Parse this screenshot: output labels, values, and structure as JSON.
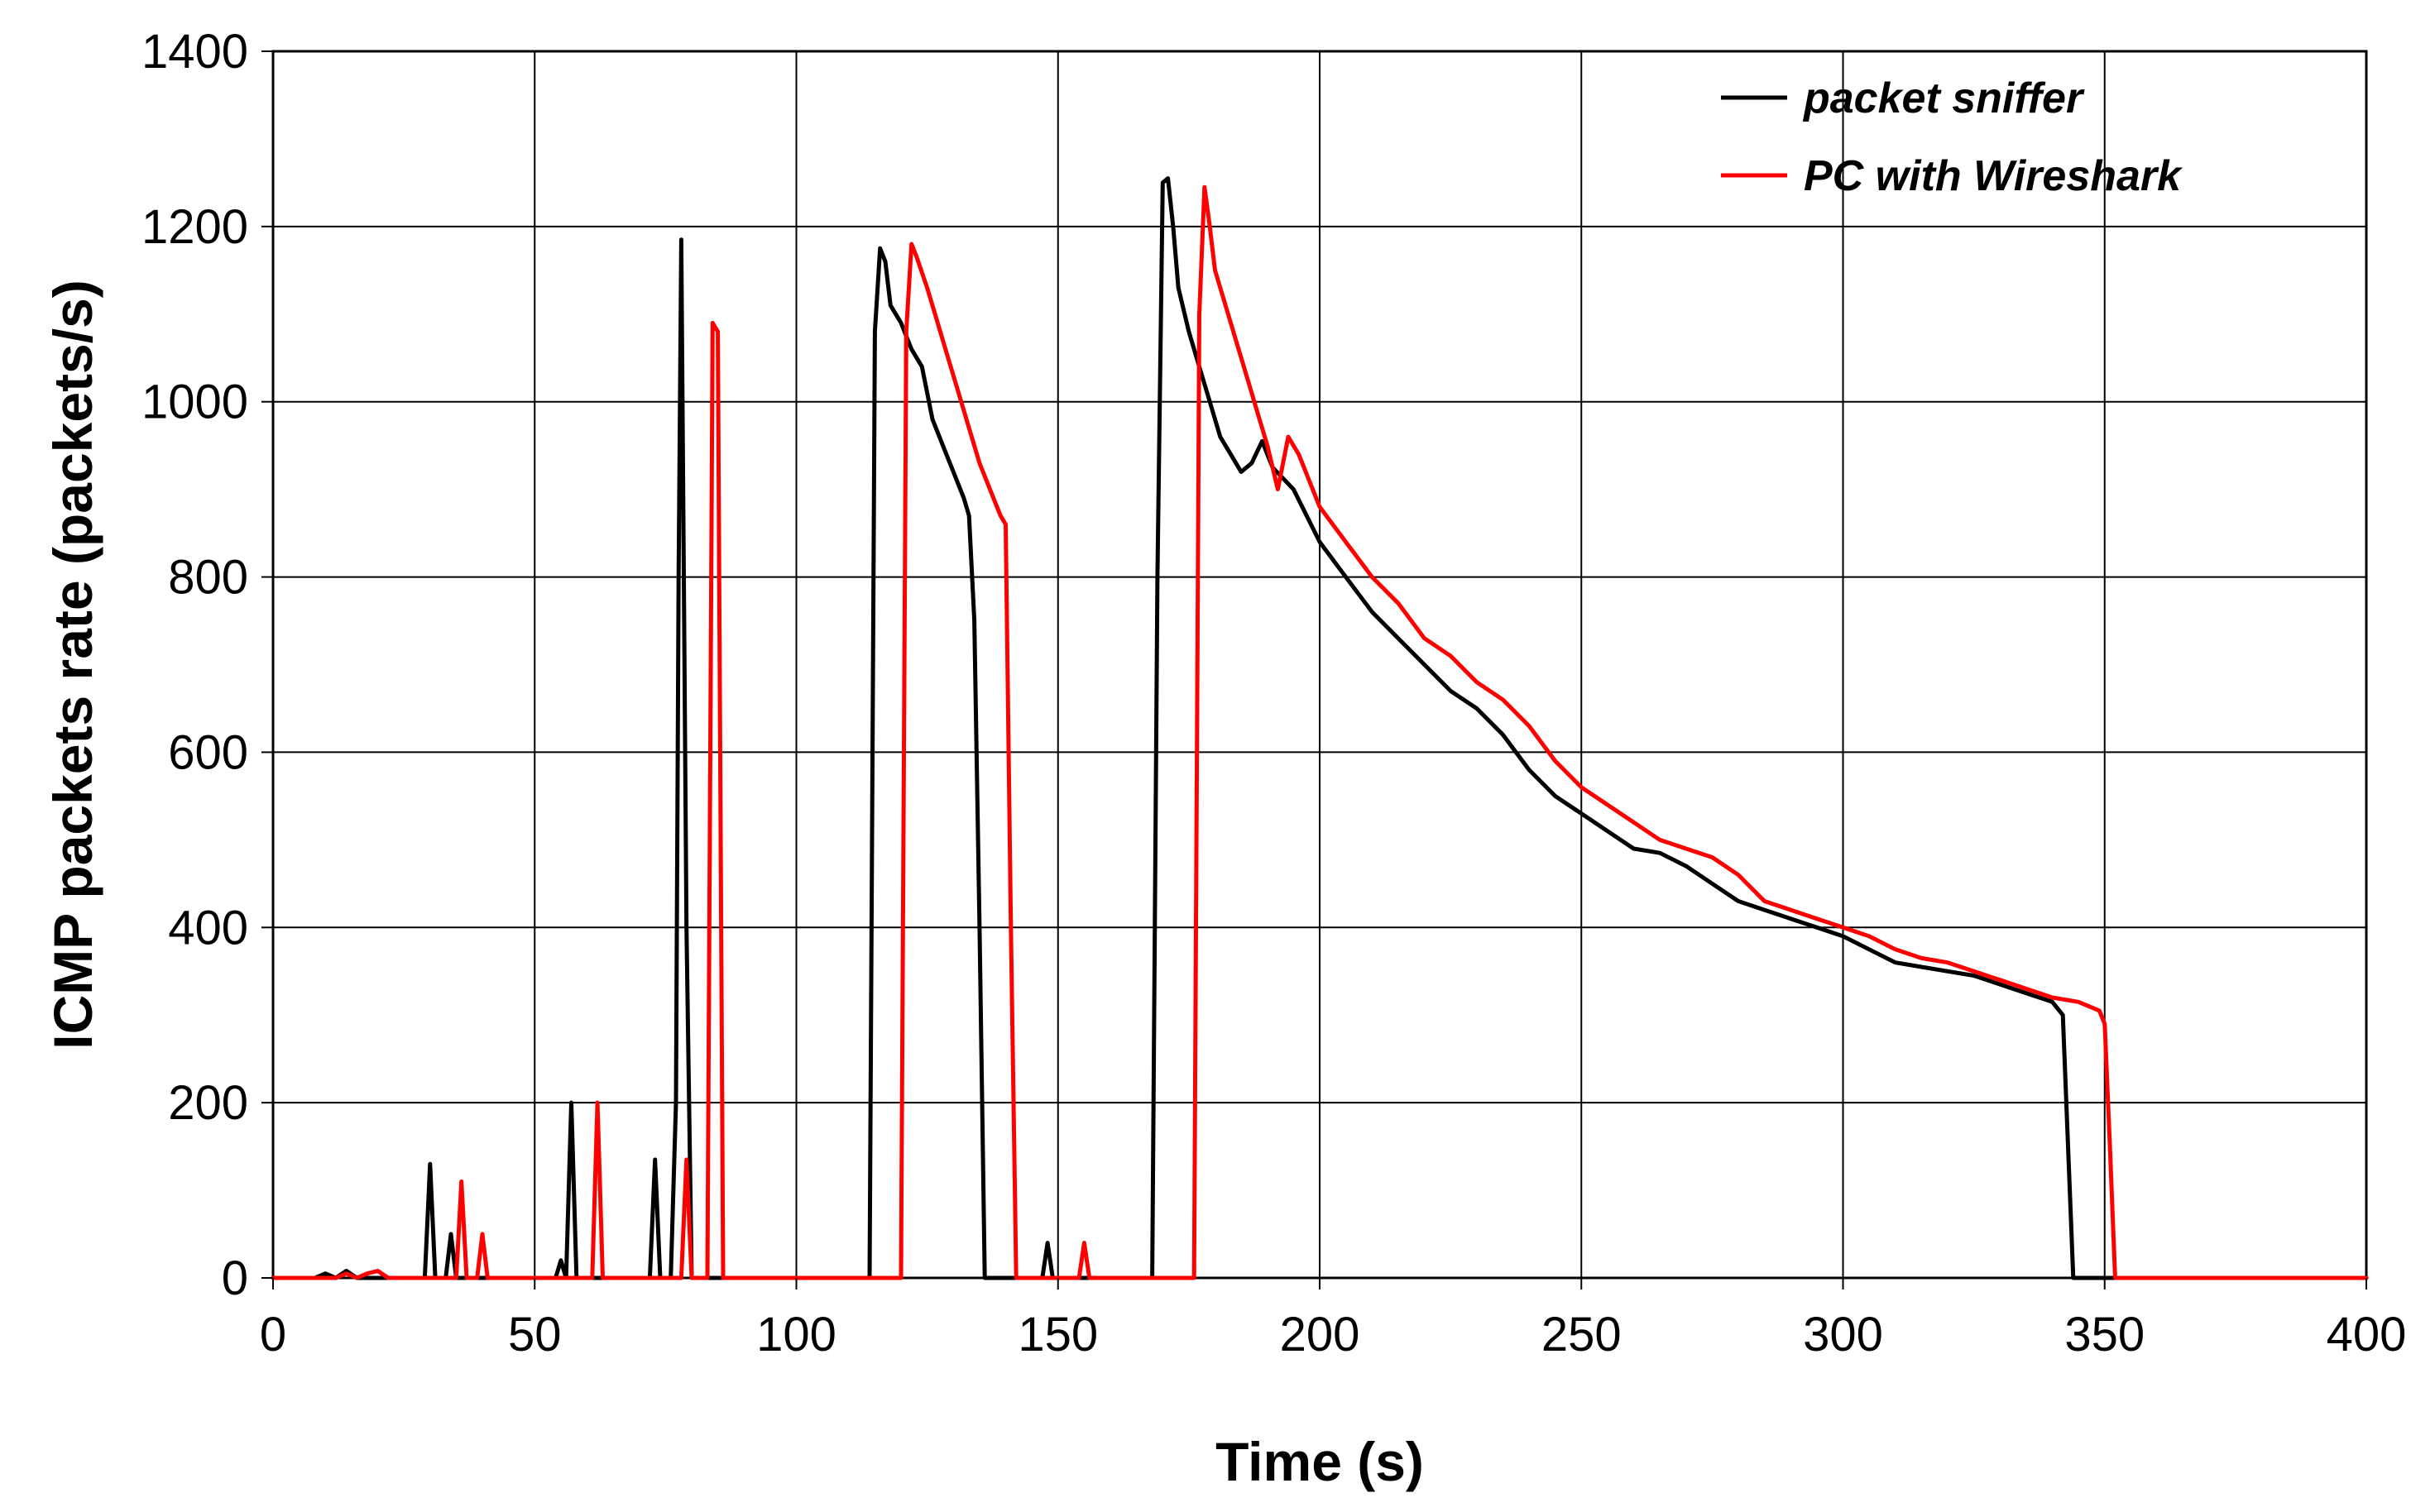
{
  "chart_data": {
    "type": "line",
    "title": "",
    "xlabel": "Time (s)",
    "ylabel": "ICMP packets rate (packets/s)",
    "xlim": [
      0,
      400
    ],
    "ylim": [
      0,
      1400
    ],
    "grid": true,
    "legend_position": "top-right",
    "x_ticks": [
      "0",
      "50",
      "100",
      "150",
      "200",
      "250",
      "300",
      "350",
      "400"
    ],
    "y_ticks": [
      "0",
      "200",
      "400",
      "600",
      "800",
      "1000",
      "1200",
      "1400"
    ],
    "series": [
      {
        "name": "packet sniffer",
        "color": "#000000",
        "points": [
          [
            0,
            0
          ],
          [
            8,
            0
          ],
          [
            10,
            5
          ],
          [
            12,
            0
          ],
          [
            14,
            8
          ],
          [
            16,
            0
          ],
          [
            29,
            0
          ],
          [
            30,
            130
          ],
          [
            31,
            0
          ],
          [
            33,
            0
          ],
          [
            34,
            50
          ],
          [
            35,
            0
          ],
          [
            54,
            0
          ],
          [
            55,
            20
          ],
          [
            56,
            0
          ],
          [
            57,
            200
          ],
          [
            58,
            0
          ],
          [
            72,
            0
          ],
          [
            73,
            135
          ],
          [
            74,
            0
          ],
          [
            76,
            0
          ],
          [
            77,
            200
          ],
          [
            77.5,
            800
          ],
          [
            78,
            1185
          ],
          [
            79,
            400
          ],
          [
            80,
            0
          ],
          [
            114,
            0
          ],
          [
            115,
            1080
          ],
          [
            116,
            1175
          ],
          [
            117,
            1160
          ],
          [
            118,
            1110
          ],
          [
            120,
            1090
          ],
          [
            122,
            1060
          ],
          [
            124,
            1040
          ],
          [
            126,
            980
          ],
          [
            128,
            950
          ],
          [
            130,
            920
          ],
          [
            132,
            890
          ],
          [
            133,
            870
          ],
          [
            134,
            750
          ],
          [
            135,
            400
          ],
          [
            136,
            0
          ],
          [
            147,
            0
          ],
          [
            148,
            40
          ],
          [
            149,
            0
          ],
          [
            168,
            0
          ],
          [
            169,
            800
          ],
          [
            170,
            1250
          ],
          [
            171,
            1255
          ],
          [
            172,
            1200
          ],
          [
            173,
            1130
          ],
          [
            175,
            1080
          ],
          [
            177,
            1040
          ],
          [
            179,
            1000
          ],
          [
            181,
            960
          ],
          [
            183,
            940
          ],
          [
            185,
            920
          ],
          [
            187,
            930
          ],
          [
            189,
            955
          ],
          [
            191,
            925
          ],
          [
            195,
            900
          ],
          [
            200,
            840
          ],
          [
            205,
            800
          ],
          [
            210,
            760
          ],
          [
            215,
            730
          ],
          [
            220,
            700
          ],
          [
            225,
            670
          ],
          [
            230,
            650
          ],
          [
            235,
            620
          ],
          [
            240,
            580
          ],
          [
            245,
            550
          ],
          [
            250,
            530
          ],
          [
            255,
            510
          ],
          [
            260,
            490
          ],
          [
            265,
            485
          ],
          [
            270,
            470
          ],
          [
            275,
            450
          ],
          [
            280,
            430
          ],
          [
            285,
            420
          ],
          [
            290,
            410
          ],
          [
            295,
            400
          ],
          [
            300,
            390
          ],
          [
            305,
            375
          ],
          [
            310,
            360
          ],
          [
            315,
            355
          ],
          [
            320,
            350
          ],
          [
            325,
            345
          ],
          [
            330,
            335
          ],
          [
            335,
            325
          ],
          [
            340,
            315
          ],
          [
            342,
            300
          ],
          [
            343,
            150
          ],
          [
            344,
            0
          ],
          [
            400,
            0
          ]
        ]
      },
      {
        "name": "PC with Wireshark",
        "color": "#ff0000",
        "points": [
          [
            0,
            0
          ],
          [
            12,
            0
          ],
          [
            14,
            5
          ],
          [
            16,
            0
          ],
          [
            18,
            5
          ],
          [
            20,
            8
          ],
          [
            22,
            0
          ],
          [
            35,
            0
          ],
          [
            36,
            110
          ],
          [
            37,
            0
          ],
          [
            39,
            0
          ],
          [
            40,
            50
          ],
          [
            41,
            0
          ],
          [
            61,
            0
          ],
          [
            62,
            200
          ],
          [
            63,
            0
          ],
          [
            78,
            0
          ],
          [
            79,
            135
          ],
          [
            80,
            0
          ],
          [
            83,
            0
          ],
          [
            84,
            1090
          ],
          [
            85,
            1080
          ],
          [
            86,
            0
          ],
          [
            120,
            0
          ],
          [
            121,
            1080
          ],
          [
            122,
            1180
          ],
          [
            123,
            1165
          ],
          [
            125,
            1130
          ],
          [
            127,
            1090
          ],
          [
            129,
            1050
          ],
          [
            131,
            1010
          ],
          [
            133,
            970
          ],
          [
            135,
            930
          ],
          [
            137,
            900
          ],
          [
            139,
            870
          ],
          [
            140,
            860
          ],
          [
            141,
            400
          ],
          [
            142,
            0
          ],
          [
            154,
            0
          ],
          [
            155,
            40
          ],
          [
            156,
            0
          ],
          [
            176,
            0
          ],
          [
            177,
            1100
          ],
          [
            178,
            1245
          ],
          [
            179,
            1200
          ],
          [
            180,
            1150
          ],
          [
            182,
            1110
          ],
          [
            184,
            1070
          ],
          [
            186,
            1030
          ],
          [
            188,
            990
          ],
          [
            190,
            950
          ],
          [
            192,
            900
          ],
          [
            194,
            960
          ],
          [
            196,
            940
          ],
          [
            200,
            880
          ],
          [
            205,
            840
          ],
          [
            210,
            800
          ],
          [
            215,
            770
          ],
          [
            220,
            730
          ],
          [
            225,
            710
          ],
          [
            230,
            680
          ],
          [
            235,
            660
          ],
          [
            240,
            630
          ],
          [
            245,
            590
          ],
          [
            250,
            560
          ],
          [
            255,
            540
          ],
          [
            260,
            520
          ],
          [
            265,
            500
          ],
          [
            270,
            490
          ],
          [
            275,
            480
          ],
          [
            280,
            460
          ],
          [
            285,
            430
          ],
          [
            290,
            420
          ],
          [
            295,
            410
          ],
          [
            300,
            400
          ],
          [
            305,
            390
          ],
          [
            310,
            375
          ],
          [
            315,
            365
          ],
          [
            320,
            360
          ],
          [
            325,
            350
          ],
          [
            330,
            340
          ],
          [
            335,
            330
          ],
          [
            340,
            320
          ],
          [
            345,
            315
          ],
          [
            349,
            305
          ],
          [
            350,
            290
          ],
          [
            351,
            150
          ],
          [
            352,
            0
          ],
          [
            400,
            0
          ]
        ]
      }
    ]
  }
}
